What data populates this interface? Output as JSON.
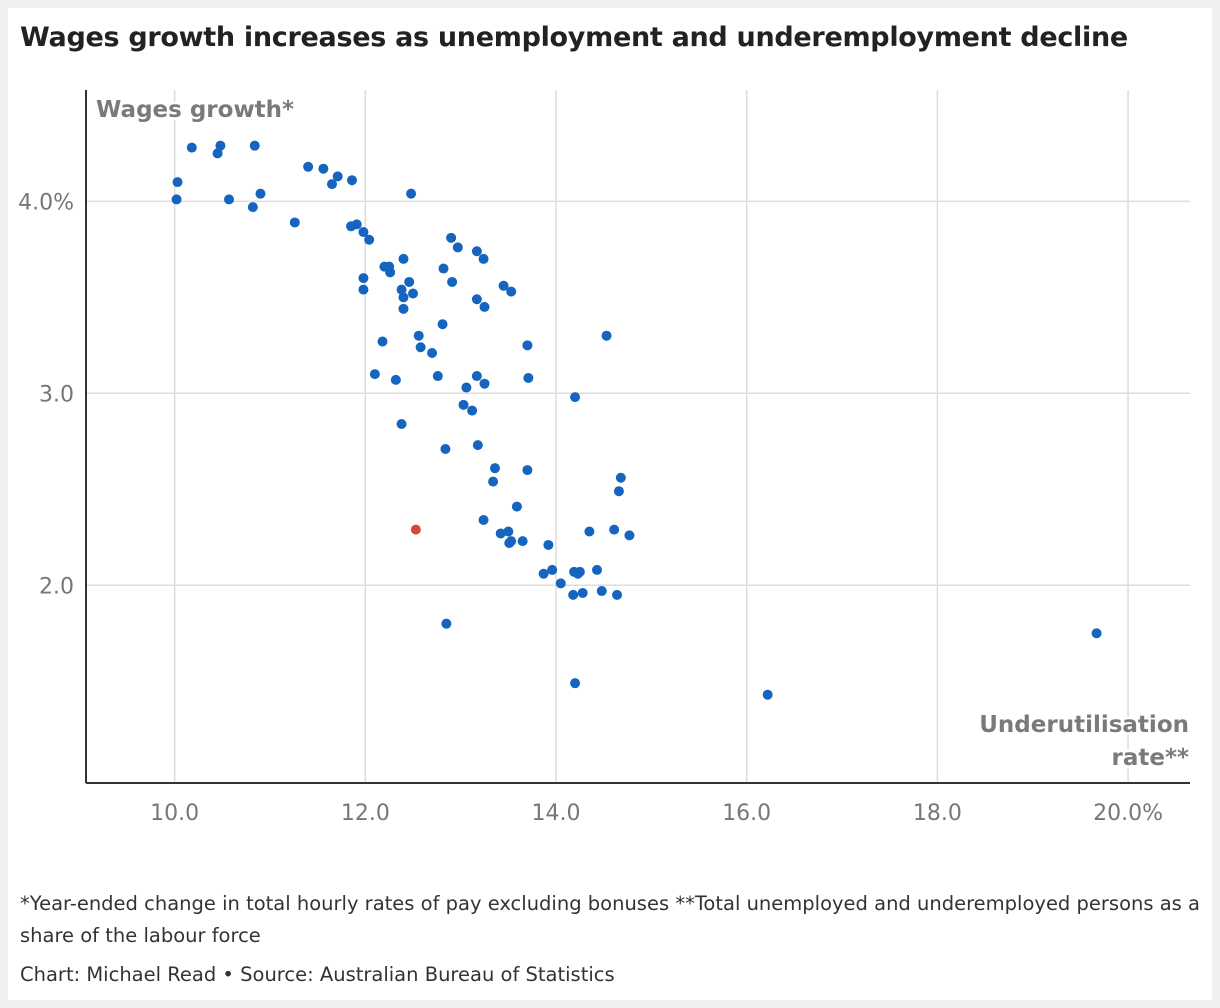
{
  "title": "Wages growth increases as unemployment and underemployment decline",
  "notes": "*Year-ended change in total hourly rates of pay excluding bonuses **Total unemployed and underemployed persons as a share of the labour force",
  "credit": "Chart: Michael Read • Source: Australian Bureau of Statistics",
  "colors": {
    "point": "#1565c0",
    "highlight": "#d9453a",
    "grid": "#dddddd",
    "axis": "#333333"
  },
  "chart_data": {
    "type": "scatter",
    "xlabel": "Underutilisation rate**",
    "xlabel_lines": [
      "Underutilisation",
      "rate**"
    ],
    "ylabel": "Wages growth*",
    "xlim": [
      9.07,
      20.65
    ],
    "ylim": [
      0.97,
      4.58
    ],
    "xticks": [
      10,
      12,
      14,
      16,
      18,
      20
    ],
    "xtick_labels": [
      "10.0",
      "12.0",
      "14.0",
      "16.0",
      "18.0",
      "20.0%"
    ],
    "yticks": [
      2,
      3,
      4
    ],
    "ytick_labels": [
      "2.0",
      "3.0",
      "4.0%"
    ],
    "highlight": {
      "x": 12.53,
      "y": 2.29
    },
    "points": [
      [
        10.03,
        4.1
      ],
      [
        10.02,
        4.01
      ],
      [
        10.18,
        4.28
      ],
      [
        10.45,
        4.25
      ],
      [
        10.48,
        4.29
      ],
      [
        10.84,
        4.29
      ],
      [
        10.57,
        4.01
      ],
      [
        10.82,
        3.97
      ],
      [
        10.9,
        4.04
      ],
      [
        11.26,
        3.89
      ],
      [
        11.4,
        4.18
      ],
      [
        11.56,
        4.17
      ],
      [
        11.65,
        4.09
      ],
      [
        11.71,
        4.13
      ],
      [
        11.86,
        4.11
      ],
      [
        12.48,
        4.04
      ],
      [
        11.85,
        3.87
      ],
      [
        11.91,
        3.88
      ],
      [
        11.98,
        3.84
      ],
      [
        12.04,
        3.8
      ],
      [
        12.4,
        3.7
      ],
      [
        12.2,
        3.66
      ],
      [
        12.25,
        3.66
      ],
      [
        12.26,
        3.63
      ],
      [
        12.46,
        3.58
      ],
      [
        12.38,
        3.54
      ],
      [
        12.4,
        3.5
      ],
      [
        12.5,
        3.52
      ],
      [
        11.98,
        3.6
      ],
      [
        11.98,
        3.54
      ],
      [
        12.4,
        3.44
      ],
      [
        12.82,
        3.65
      ],
      [
        12.9,
        3.81
      ],
      [
        12.97,
        3.76
      ],
      [
        13.17,
        3.74
      ],
      [
        13.24,
        3.7
      ],
      [
        12.91,
        3.58
      ],
      [
        13.45,
        3.56
      ],
      [
        13.53,
        3.53
      ],
      [
        13.17,
        3.49
      ],
      [
        13.25,
        3.45
      ],
      [
        12.81,
        3.36
      ],
      [
        12.56,
        3.3
      ],
      [
        12.18,
        3.27
      ],
      [
        12.58,
        3.24
      ],
      [
        12.7,
        3.21
      ],
      [
        13.7,
        3.25
      ],
      [
        14.53,
        3.3
      ],
      [
        12.1,
        3.1
      ],
      [
        12.32,
        3.07
      ],
      [
        12.76,
        3.09
      ],
      [
        13.17,
        3.09
      ],
      [
        13.71,
        3.08
      ],
      [
        13.06,
        3.03
      ],
      [
        13.25,
        3.05
      ],
      [
        13.03,
        2.94
      ],
      [
        13.12,
        2.91
      ],
      [
        14.2,
        2.98
      ],
      [
        12.38,
        2.84
      ],
      [
        12.84,
        2.71
      ],
      [
        13.18,
        2.73
      ],
      [
        13.36,
        2.61
      ],
      [
        13.34,
        2.54
      ],
      [
        13.7,
        2.6
      ],
      [
        14.68,
        2.56
      ],
      [
        14.66,
        2.49
      ],
      [
        13.59,
        2.41
      ],
      [
        13.24,
        2.34
      ],
      [
        13.42,
        2.27
      ],
      [
        13.5,
        2.28
      ],
      [
        13.53,
        2.23
      ],
      [
        13.51,
        2.22
      ],
      [
        13.65,
        2.23
      ],
      [
        14.35,
        2.28
      ],
      [
        14.61,
        2.29
      ],
      [
        14.77,
        2.26
      ],
      [
        13.92,
        2.21
      ],
      [
        13.87,
        2.06
      ],
      [
        13.96,
        2.08
      ],
      [
        14.05,
        2.01
      ],
      [
        14.19,
        2.07
      ],
      [
        14.25,
        2.07
      ],
      [
        14.43,
        2.08
      ],
      [
        14.23,
        2.06
      ],
      [
        14.18,
        1.95
      ],
      [
        14.28,
        1.96
      ],
      [
        14.48,
        1.97
      ],
      [
        14.64,
        1.95
      ],
      [
        12.85,
        1.8
      ],
      [
        14.2,
        1.49
      ],
      [
        16.22,
        1.43
      ],
      [
        19.67,
        1.75
      ]
    ]
  }
}
